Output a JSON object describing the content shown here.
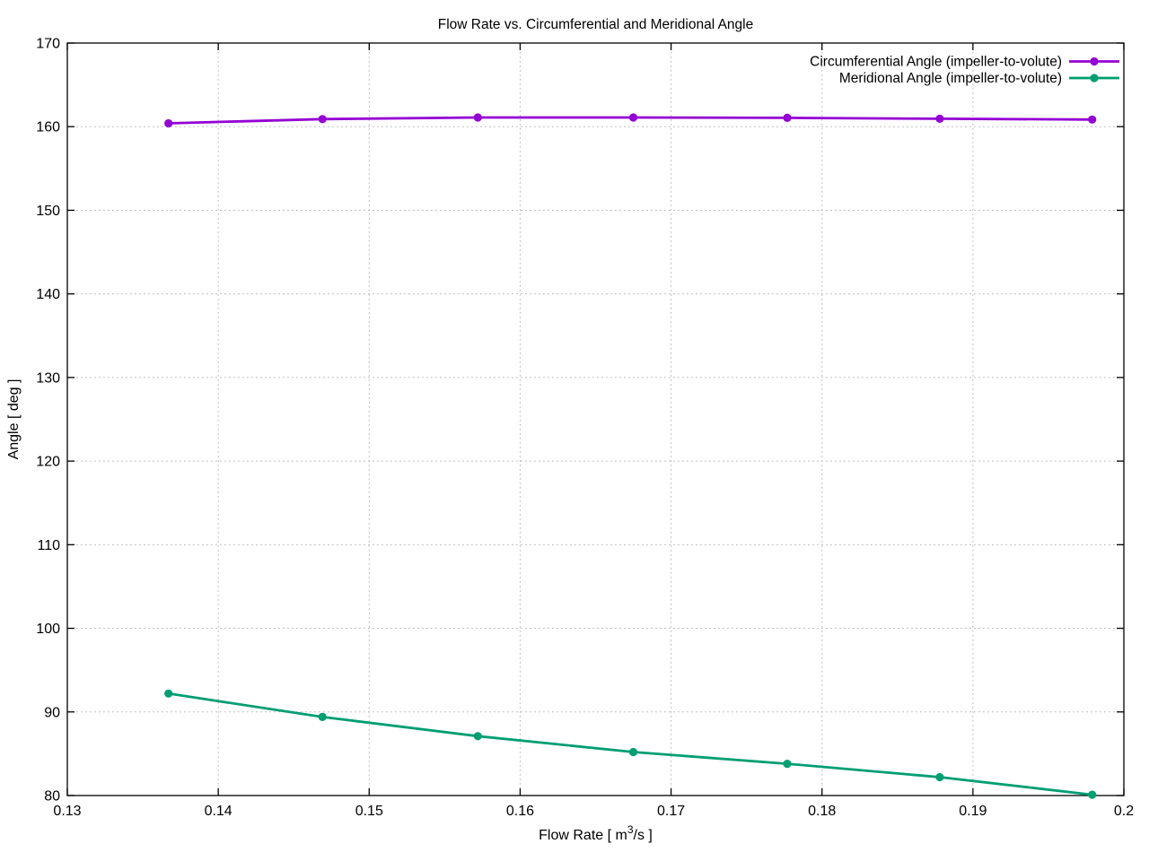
{
  "chart_data": {
    "type": "line",
    "title": "Flow Rate vs. Circumferential and Meridional Angle",
    "xlabel": "Flow Rate [ m³/s ]",
    "ylabel": "Angle [ deg ]",
    "xlim": [
      0.13,
      0.2
    ],
    "ylim": [
      80,
      170
    ],
    "grid": true,
    "legend_position": "top-right-inside",
    "x_ticks": [
      {
        "v": 0.13,
        "label": "0.13"
      },
      {
        "v": 0.14,
        "label": "0.14"
      },
      {
        "v": 0.15,
        "label": "0.15"
      },
      {
        "v": 0.16,
        "label": "0.16"
      },
      {
        "v": 0.17,
        "label": "0.17"
      },
      {
        "v": 0.18,
        "label": "0.18"
      },
      {
        "v": 0.19,
        "label": "0.19"
      },
      {
        "v": 0.2,
        "label": "0.2"
      }
    ],
    "y_ticks": [
      {
        "v": 80,
        "label": "80"
      },
      {
        "v": 90,
        "label": "90"
      },
      {
        "v": 100,
        "label": "100"
      },
      {
        "v": 110,
        "label": "110"
      },
      {
        "v": 120,
        "label": "120"
      },
      {
        "v": 130,
        "label": "130"
      },
      {
        "v": 140,
        "label": "140"
      },
      {
        "v": 150,
        "label": "150"
      },
      {
        "v": 160,
        "label": "160"
      },
      {
        "v": 170,
        "label": "170"
      }
    ],
    "x": [
      0.1367,
      0.1469,
      0.1572,
      0.1675,
      0.1777,
      0.1878,
      0.1979
    ],
    "series": [
      {
        "name": "Circumferential Angle (impeller-to-volute)",
        "color": "#9400d3",
        "marker": "filled-circle",
        "values": [
          160.4,
          160.9,
          161.1,
          161.1,
          161.05,
          160.95,
          160.85
        ]
      },
      {
        "name": "Meridional Angle (impeller-to-volute)",
        "color": "#009e73",
        "marker": "filled-circle",
        "values": [
          92.2,
          89.4,
          87.1,
          85.2,
          83.8,
          82.2,
          80.1
        ]
      }
    ]
  }
}
